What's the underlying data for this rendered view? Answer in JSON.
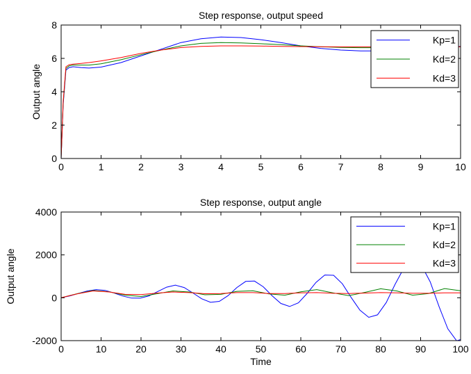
{
  "chart_data": [
    {
      "type": "line",
      "title": "Step response, output speed",
      "xlabel": "",
      "ylabel": "Output angle",
      "xlim": [
        0,
        10
      ],
      "ylim": [
        0,
        8
      ],
      "xticks": [
        "0",
        "1",
        "2",
        "3",
        "4",
        "5",
        "6",
        "7",
        "8",
        "9",
        "10"
      ],
      "yticks": [
        "0",
        "2",
        "4",
        "6",
        "8"
      ],
      "grid": false,
      "legend": "top-right",
      "series": [
        {
          "name": "Kp=1",
          "color": "#0000ff",
          "x": [
            0,
            0.05,
            0.12,
            0.2,
            0.3,
            0.5,
            0.7,
            1,
            1.5,
            2,
            2.5,
            3,
            3.5,
            4,
            4.5,
            5,
            5.5,
            6,
            6.5,
            7,
            7.5,
            8,
            8.5,
            9,
            9.5,
            10
          ],
          "y": [
            0,
            3.2,
            5.3,
            5.45,
            5.5,
            5.45,
            5.42,
            5.48,
            5.75,
            6.15,
            6.55,
            6.95,
            7.18,
            7.28,
            7.25,
            7.12,
            6.95,
            6.75,
            6.6,
            6.5,
            6.45,
            6.45,
            6.55,
            6.65,
            6.7,
            6.72
          ]
        },
        {
          "name": "Kd=2",
          "color": "#008000",
          "x": [
            0,
            0.05,
            0.12,
            0.2,
            0.3,
            0.5,
            0.7,
            1,
            1.5,
            2,
            2.5,
            3,
            3.5,
            4,
            4.5,
            5,
            5.5,
            6,
            6.5,
            7,
            7.5,
            8,
            8.5,
            9,
            9.5,
            10
          ],
          "y": [
            0,
            3.3,
            5.4,
            5.55,
            5.6,
            5.6,
            5.6,
            5.68,
            5.92,
            6.22,
            6.5,
            6.75,
            6.9,
            6.95,
            6.93,
            6.88,
            6.82,
            6.75,
            6.7,
            6.66,
            6.64,
            6.64,
            6.66,
            6.68,
            6.7,
            6.7
          ]
        },
        {
          "name": "Kd=3",
          "color": "#ff0000",
          "x": [
            0,
            0.05,
            0.12,
            0.2,
            0.3,
            0.5,
            0.7,
            1,
            1.5,
            2,
            2.5,
            3,
            3.5,
            4,
            4.5,
            5,
            5.5,
            6,
            6.5,
            7,
            7.5,
            8,
            8.5,
            9,
            9.5,
            10
          ],
          "y": [
            0,
            3.4,
            5.5,
            5.62,
            5.66,
            5.7,
            5.75,
            5.85,
            6.05,
            6.3,
            6.5,
            6.65,
            6.72,
            6.75,
            6.75,
            6.74,
            6.72,
            6.71,
            6.7,
            6.69,
            6.69,
            6.69,
            6.69,
            6.7,
            6.7,
            6.7
          ]
        }
      ]
    },
    {
      "type": "line",
      "title": "Step response, output angle",
      "xlabel": "Time",
      "ylabel": "Output angle",
      "xlim": [
        0,
        100
      ],
      "ylim": [
        -2000,
        4000
      ],
      "xticks": [
        "0",
        "10",
        "20",
        "30",
        "40",
        "50",
        "60",
        "70",
        "80",
        "90",
        "100"
      ],
      "yticks": [
        "-2000",
        "0",
        "2000",
        "4000"
      ],
      "grid": false,
      "legend": "top-right",
      "series": [
        {
          "name": "Kp=1",
          "color": "#0000ff",
          "x": [
            0,
            2.2,
            4.4,
            6.6,
            8.8,
            11,
            13.2,
            15.4,
            17.6,
            19.8,
            22,
            24.2,
            26.4,
            28.6,
            30.8,
            33,
            35.2,
            37.4,
            39.6,
            41.8,
            44,
            46.2,
            48.4,
            50.6,
            52.8,
            55,
            57.2,
            59.4,
            61.6,
            63.8,
            66,
            68.2,
            70.4,
            72.6,
            74.8,
            77,
            79.2,
            81.4,
            83.6,
            85.8,
            88,
            90.2,
            92.4,
            94.6,
            96.8,
            99,
            100
          ],
          "y": [
            0,
            85,
            206,
            320,
            380,
            346,
            226,
            81,
            -16,
            -20,
            88,
            294,
            495,
            587,
            477,
            223,
            -49,
            -212,
            -169,
            103,
            477,
            762,
            781,
            515,
            96,
            -266,
            -407,
            -235,
            206,
            717,
            1061,
            1050,
            653,
            17,
            -580,
            -914,
            -796,
            -222,
            628,
            1383,
            1725,
            1520,
            741,
            -400,
            -1446,
            -2007,
            -1950
          ]
        },
        {
          "name": "Kd=2",
          "color": "#008000",
          "x": [
            0,
            4,
            8,
            12,
            16,
            20,
            24,
            28,
            32,
            36,
            40,
            44,
            48,
            52,
            56,
            60,
            64,
            68,
            72,
            76,
            80,
            84,
            88,
            92,
            96,
            100
          ],
          "y": [
            0,
            190,
            340,
            280,
            120,
            60,
            190,
            320,
            270,
            140,
            160,
            300,
            330,
            180,
            120,
            280,
            380,
            230,
            100,
            250,
            420,
            320,
            120,
            200,
            430,
            330
          ]
        },
        {
          "name": "Kd=3",
          "color": "#ff0000",
          "x": [
            0,
            4,
            8,
            12,
            16,
            20,
            24,
            28,
            32,
            36,
            40,
            44,
            48,
            52,
            56,
            60,
            64,
            68,
            72,
            76,
            80,
            84,
            88,
            92,
            96,
            100
          ],
          "y": [
            0,
            180,
            320,
            270,
            160,
            150,
            220,
            270,
            240,
            190,
            200,
            240,
            240,
            200,
            200,
            230,
            240,
            210,
            200,
            220,
            240,
            230,
            210,
            210,
            230,
            230
          ]
        }
      ]
    }
  ]
}
